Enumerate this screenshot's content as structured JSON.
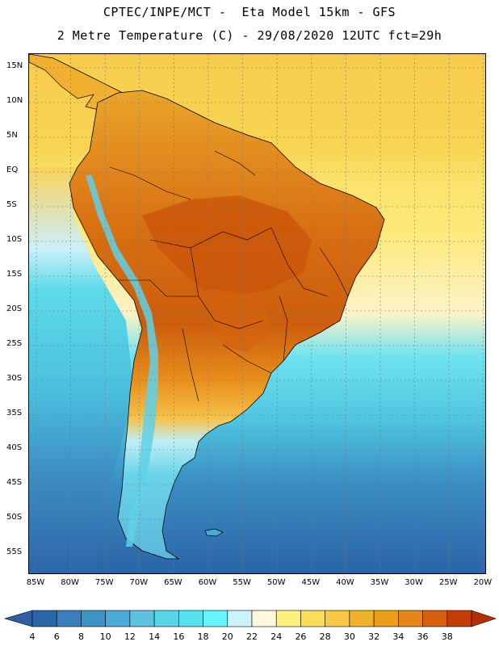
{
  "title_line1": "CPTEC/INPE/MCT -  Eta Model 15km - GFS",
  "title_line2": "2 Metre Temperature (C) - 29/08/2020 12UTC fct=29h",
  "lat_ticks": [
    "15N",
    "10N",
    "5N",
    "EQ",
    "5S",
    "10S",
    "15S",
    "20S",
    "25S",
    "30S",
    "35S",
    "40S",
    "45S",
    "50S",
    "55S"
  ],
  "lon_ticks": [
    "85W",
    "80W",
    "75W",
    "70W",
    "65W",
    "60W",
    "55W",
    "50W",
    "45W",
    "40W",
    "35W",
    "30W",
    "25W",
    "20W"
  ],
  "colorbar": {
    "labels": [
      "4",
      "6",
      "8",
      "10",
      "12",
      "14",
      "16",
      "18",
      "20",
      "22",
      "24",
      "26",
      "28",
      "30",
      "32",
      "34",
      "36",
      "38"
    ],
    "colors": [
      "#2a66a8",
      "#3a7fbc",
      "#3d92c6",
      "#4aabd6",
      "#5cc2df",
      "#58d5e6",
      "#56e2ee",
      "#68f4fb",
      "#ccf2fc",
      "#fbf8dd",
      "#fdf07e",
      "#fbdd5a",
      "#f7c945",
      "#efb32b",
      "#eb9e17",
      "#e4861a",
      "#d8600d",
      "#c43d07"
    ],
    "under_color": "#2f5fa2",
    "over_color": "#b23006"
  }
}
